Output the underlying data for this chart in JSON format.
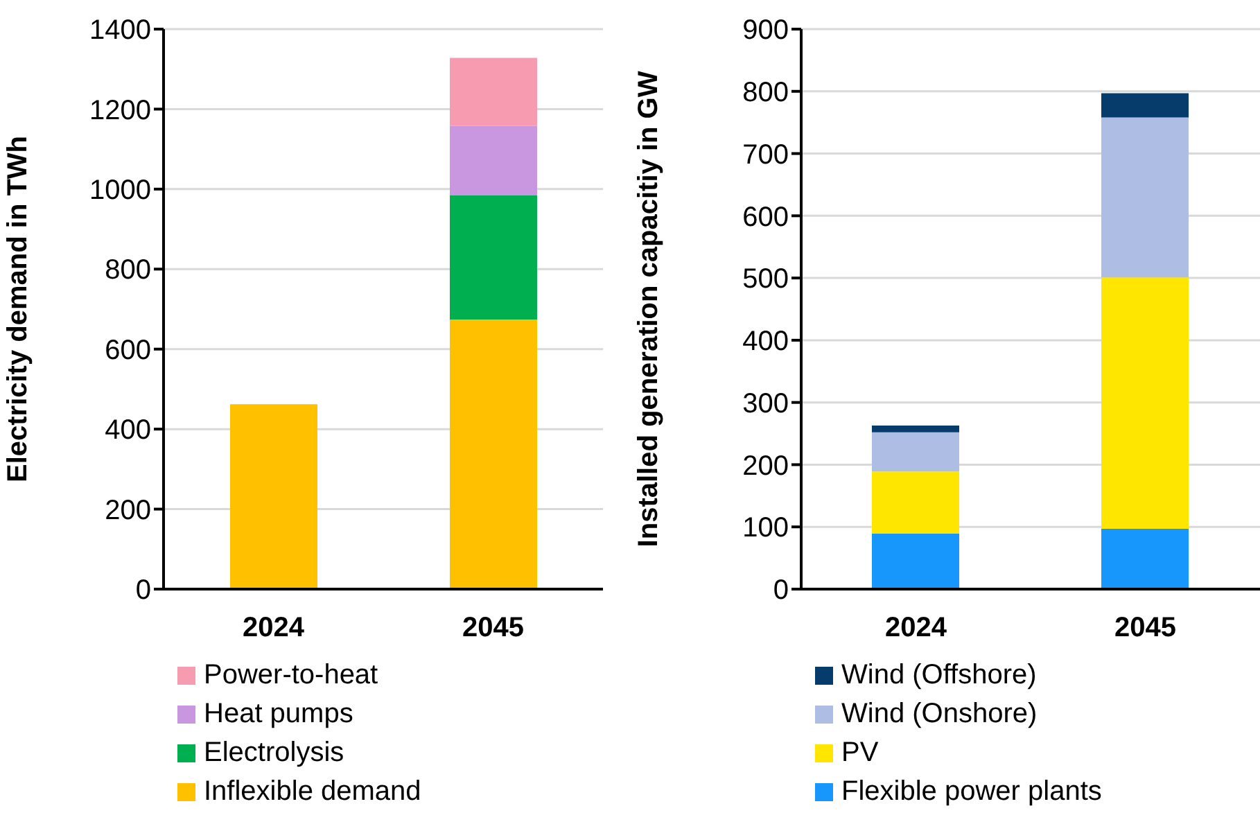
{
  "chart_data": [
    {
      "type": "bar",
      "stacked": true,
      "ylabel": "Electricity demand  in TWh",
      "categories": [
        "2024",
        "2045"
      ],
      "ylim": [
        0,
        1400
      ],
      "yticks": [
        0,
        200,
        400,
        600,
        800,
        1000,
        1200,
        1400
      ],
      "grid": "y",
      "legend": "bottom",
      "series": [
        {
          "name": "Inflexible demand",
          "color": "#ffc000",
          "values": [
            462,
            674
          ]
        },
        {
          "name": "Electrolysis",
          "color": "#00b050",
          "values": [
            null,
            310
          ]
        },
        {
          "name": "Heat pumps",
          "color": "#c996e0",
          "values": [
            null,
            174
          ]
        },
        {
          "name": "Power-to-heat",
          "color": "#f79bb1",
          "values": [
            null,
            170
          ]
        }
      ]
    },
    {
      "type": "bar",
      "stacked": true,
      "ylabel": "Installed generation capacitiy in GW",
      "categories": [
        "2024",
        "2045"
      ],
      "ylim": [
        0,
        900
      ],
      "yticks": [
        0,
        100,
        200,
        300,
        400,
        500,
        600,
        700,
        800,
        900
      ],
      "grid": "y",
      "legend": "bottom",
      "series": [
        {
          "name": "Flexible power plants",
          "color": "#1797fc",
          "values": [
            89,
            97
          ]
        },
        {
          "name": "PV",
          "color": "#ffe600",
          "values": [
            100,
            404
          ]
        },
        {
          "name": "Wind (Onshore)",
          "color": "#adbde4",
          "values": [
            63,
            257
          ]
        },
        {
          "name": "Wind (Offshore)",
          "color": "#053c6b",
          "values": [
            11,
            39
          ]
        }
      ]
    }
  ]
}
